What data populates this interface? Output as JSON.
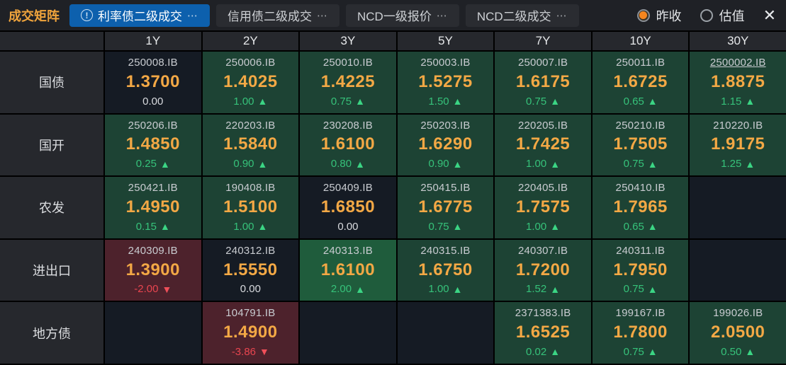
{
  "titlebar": {
    "title": "成交矩阵",
    "tabs": [
      {
        "label": "利率债二级成交",
        "more": "⋯",
        "active": true,
        "has_info_icon": true,
        "info_glyph": "!"
      },
      {
        "label": "信用债二级成交",
        "more": "⋯",
        "active": false,
        "has_info_icon": false
      },
      {
        "label": "NCD一级报价",
        "more": "⋯",
        "active": false,
        "has_info_icon": false
      },
      {
        "label": "NCD二级成交",
        "more": "⋯",
        "active": false,
        "has_info_icon": false
      }
    ],
    "radios": [
      {
        "label": "昨收",
        "selected": true
      },
      {
        "label": "估值",
        "selected": false
      }
    ],
    "close_glyph": "✕"
  },
  "colors": {
    "accent_orange": "#f0a43c",
    "price_orange": "#f3a845",
    "tab_active_blue": "#0d60ad",
    "up_green_bg": "#1d4334",
    "up_green_bright_bg": "#1f5c3c",
    "down_red_bg": "#4d222c",
    "flat_bg": "#151b24",
    "up_text": "#36c27a",
    "down_text": "#e8454f",
    "radio_selected": "#f5861f"
  },
  "matrix": {
    "up_glyph": "▲",
    "down_glyph": "▼",
    "columns": [
      "1Y",
      "2Y",
      "3Y",
      "5Y",
      "7Y",
      "10Y",
      "30Y"
    ],
    "rows": [
      {
        "label": "国债",
        "cells": [
          {
            "code": "250008.IB",
            "price": "1.3700",
            "change": "0.00",
            "dir": "flat"
          },
          {
            "code": "250006.IB",
            "price": "1.4025",
            "change": "1.00",
            "dir": "up"
          },
          {
            "code": "250010.IB",
            "price": "1.4225",
            "change": "0.75",
            "dir": "up"
          },
          {
            "code": "250003.IB",
            "price": "1.5275",
            "change": "1.50",
            "dir": "up"
          },
          {
            "code": "250007.IB",
            "price": "1.6175",
            "change": "0.75",
            "dir": "up"
          },
          {
            "code": "250011.IB",
            "price": "1.6725",
            "change": "0.65",
            "dir": "up"
          },
          {
            "code": "2500002.IB",
            "price": "1.8875",
            "change": "1.15",
            "dir": "up",
            "underline": true
          }
        ]
      },
      {
        "label": "国开",
        "cells": [
          {
            "code": "250206.IB",
            "price": "1.4850",
            "change": "0.25",
            "dir": "up"
          },
          {
            "code": "220203.IB",
            "price": "1.5840",
            "change": "0.90",
            "dir": "up"
          },
          {
            "code": "230208.IB",
            "price": "1.6100",
            "change": "0.80",
            "dir": "up"
          },
          {
            "code": "250203.IB",
            "price": "1.6290",
            "change": "0.90",
            "dir": "up"
          },
          {
            "code": "220205.IB",
            "price": "1.7425",
            "change": "1.00",
            "dir": "up"
          },
          {
            "code": "250210.IB",
            "price": "1.7505",
            "change": "0.75",
            "dir": "up"
          },
          {
            "code": "210220.IB",
            "price": "1.9175",
            "change": "1.25",
            "dir": "up"
          }
        ]
      },
      {
        "label": "农发",
        "cells": [
          {
            "code": "250421.IB",
            "price": "1.4950",
            "change": "0.15",
            "dir": "up"
          },
          {
            "code": "190408.IB",
            "price": "1.5100",
            "change": "1.00",
            "dir": "up"
          },
          {
            "code": "250409.IB",
            "price": "1.6850",
            "change": "0.00",
            "dir": "flat"
          },
          {
            "code": "250415.IB",
            "price": "1.6775",
            "change": "0.75",
            "dir": "up"
          },
          {
            "code": "220405.IB",
            "price": "1.7575",
            "change": "1.00",
            "dir": "up"
          },
          {
            "code": "250410.IB",
            "price": "1.7965",
            "change": "0.65",
            "dir": "up"
          },
          {
            "empty": true
          }
        ]
      },
      {
        "label": "进出口",
        "cells": [
          {
            "code": "240309.IB",
            "price": "1.3900",
            "change": "-2.00",
            "dir": "down"
          },
          {
            "code": "240312.IB",
            "price": "1.5550",
            "change": "0.00",
            "dir": "flat"
          },
          {
            "code": "240313.IB",
            "price": "1.6100",
            "change": "2.00",
            "dir": "up",
            "bright": true
          },
          {
            "code": "240315.IB",
            "price": "1.6750",
            "change": "1.00",
            "dir": "up"
          },
          {
            "code": "240307.IB",
            "price": "1.7200",
            "change": "1.52",
            "dir": "up"
          },
          {
            "code": "240311.IB",
            "price": "1.7950",
            "change": "0.75",
            "dir": "up"
          },
          {
            "empty": true
          }
        ]
      },
      {
        "label": "地方债",
        "cells": [
          {
            "empty": true
          },
          {
            "code": "104791.IB",
            "price": "1.4900",
            "change": "-3.86",
            "dir": "down"
          },
          {
            "empty": true
          },
          {
            "empty": true
          },
          {
            "code": "2371383.IB",
            "price": "1.6525",
            "change": "0.02",
            "dir": "up"
          },
          {
            "code": "199167.IB",
            "price": "1.7800",
            "change": "0.75",
            "dir": "up"
          },
          {
            "code": "199026.IB",
            "price": "2.0500",
            "change": "0.50",
            "dir": "up"
          }
        ]
      }
    ]
  }
}
